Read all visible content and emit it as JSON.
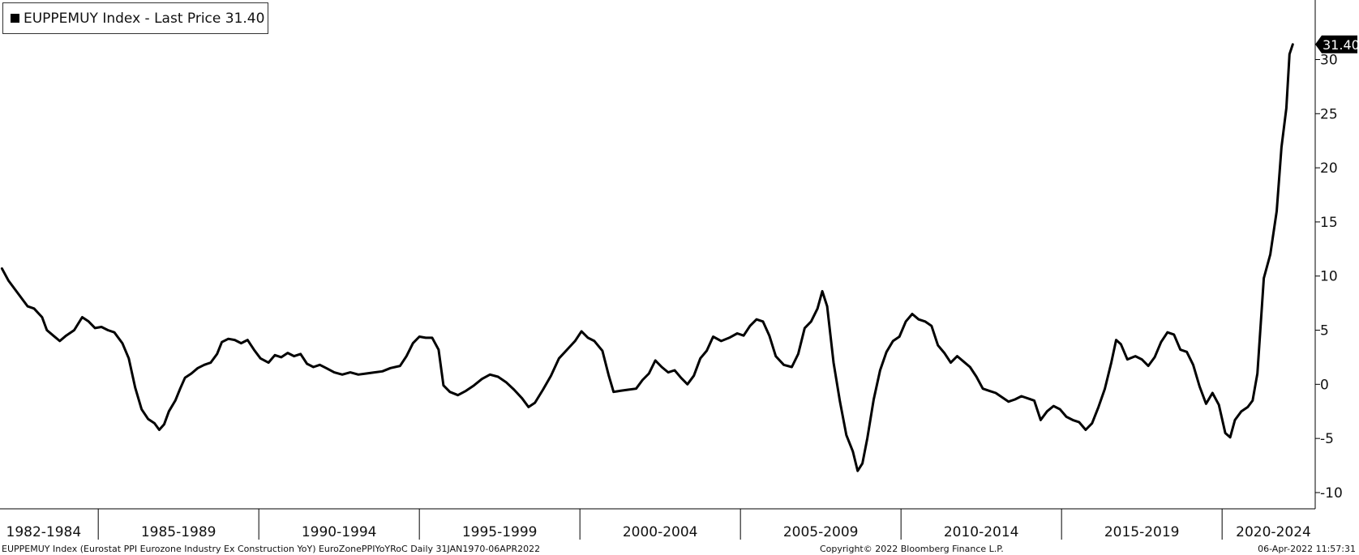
{
  "legend": {
    "label": "EUPPEMUY Index - Last Price 31.40",
    "swatch_color": "#000000"
  },
  "chart_data": {
    "type": "line",
    "series": [
      {
        "name": "EUPPEMUY Index - Last Price",
        "color": "#000000",
        "points": [
          [
            1982.0,
            10.7
          ],
          [
            1982.2,
            9.6
          ],
          [
            1982.5,
            8.4
          ],
          [
            1982.8,
            7.2
          ],
          [
            1983.0,
            7.0
          ],
          [
            1983.25,
            6.2
          ],
          [
            1983.4,
            5.0
          ],
          [
            1983.6,
            4.5
          ],
          [
            1983.8,
            4.0
          ],
          [
            1984.0,
            4.5
          ],
          [
            1984.25,
            5.0
          ],
          [
            1984.5,
            6.2
          ],
          [
            1984.7,
            5.8
          ],
          [
            1984.9,
            5.2
          ],
          [
            1985.1,
            5.3
          ],
          [
            1985.3,
            5.0
          ],
          [
            1985.5,
            4.8
          ],
          [
            1985.75,
            3.8
          ],
          [
            1985.95,
            2.4
          ],
          [
            1986.15,
            -0.3
          ],
          [
            1986.35,
            -2.3
          ],
          [
            1986.55,
            -3.2
          ],
          [
            1986.75,
            -3.6
          ],
          [
            1986.9,
            -4.2
          ],
          [
            1987.05,
            -3.7
          ],
          [
            1987.2,
            -2.5
          ],
          [
            1987.4,
            -1.5
          ],
          [
            1987.55,
            -0.4
          ],
          [
            1987.7,
            0.6
          ],
          [
            1987.9,
            1.0
          ],
          [
            1988.1,
            1.5
          ],
          [
            1988.3,
            1.8
          ],
          [
            1988.5,
            2.0
          ],
          [
            1988.7,
            2.8
          ],
          [
            1988.85,
            3.9
          ],
          [
            1989.05,
            4.2
          ],
          [
            1989.25,
            4.1
          ],
          [
            1989.45,
            3.8
          ],
          [
            1989.65,
            4.1
          ],
          [
            1989.85,
            3.2
          ],
          [
            1990.05,
            2.4
          ],
          [
            1990.3,
            2.0
          ],
          [
            1990.5,
            2.7
          ],
          [
            1990.7,
            2.5
          ],
          [
            1990.9,
            2.9
          ],
          [
            1991.1,
            2.6
          ],
          [
            1991.3,
            2.8
          ],
          [
            1991.5,
            1.9
          ],
          [
            1991.7,
            1.6
          ],
          [
            1991.9,
            1.8
          ],
          [
            1992.1,
            1.5
          ],
          [
            1992.35,
            1.1
          ],
          [
            1992.6,
            0.9
          ],
          [
            1992.85,
            1.1
          ],
          [
            1993.1,
            0.9
          ],
          [
            1993.35,
            1.0
          ],
          [
            1993.6,
            1.1
          ],
          [
            1993.85,
            1.2
          ],
          [
            1994.1,
            1.5
          ],
          [
            1994.4,
            1.7
          ],
          [
            1994.6,
            2.6
          ],
          [
            1994.8,
            3.8
          ],
          [
            1995.0,
            4.4
          ],
          [
            1995.2,
            4.3
          ],
          [
            1995.4,
            4.3
          ],
          [
            1995.6,
            3.2
          ],
          [
            1995.75,
            -0.1
          ],
          [
            1995.95,
            -0.7
          ],
          [
            1996.2,
            -1.0
          ],
          [
            1996.45,
            -0.6
          ],
          [
            1996.7,
            -0.1
          ],
          [
            1996.95,
            0.5
          ],
          [
            1997.2,
            0.9
          ],
          [
            1997.45,
            0.7
          ],
          [
            1997.7,
            0.2
          ],
          [
            1997.95,
            -0.5
          ],
          [
            1998.2,
            -1.3
          ],
          [
            1998.4,
            -2.1
          ],
          [
            1998.6,
            -1.7
          ],
          [
            1998.85,
            -0.5
          ],
          [
            1999.1,
            0.8
          ],
          [
            1999.35,
            2.4
          ],
          [
            1999.6,
            3.2
          ],
          [
            1999.85,
            4.0
          ],
          [
            2000.05,
            4.9
          ],
          [
            2000.25,
            4.3
          ],
          [
            2000.45,
            4.0
          ],
          [
            2000.7,
            3.1
          ],
          [
            2000.9,
            0.8
          ],
          [
            2001.05,
            -0.7
          ],
          [
            2001.25,
            -0.6
          ],
          [
            2001.5,
            -0.5
          ],
          [
            2001.75,
            -0.4
          ],
          [
            2001.95,
            0.4
          ],
          [
            2002.15,
            1.0
          ],
          [
            2002.35,
            2.2
          ],
          [
            2002.55,
            1.6
          ],
          [
            2002.75,
            1.1
          ],
          [
            2002.95,
            1.3
          ],
          [
            2003.15,
            0.6
          ],
          [
            2003.35,
            0.0
          ],
          [
            2003.55,
            0.8
          ],
          [
            2003.75,
            2.4
          ],
          [
            2003.95,
            3.1
          ],
          [
            2004.15,
            4.4
          ],
          [
            2004.4,
            4.0
          ],
          [
            2004.65,
            4.3
          ],
          [
            2004.9,
            4.7
          ],
          [
            2005.1,
            4.5
          ],
          [
            2005.3,
            5.4
          ],
          [
            2005.5,
            6.0
          ],
          [
            2005.7,
            5.8
          ],
          [
            2005.9,
            4.5
          ],
          [
            2006.1,
            2.6
          ],
          [
            2006.35,
            1.8
          ],
          [
            2006.6,
            1.6
          ],
          [
            2006.8,
            2.8
          ],
          [
            2007.0,
            5.2
          ],
          [
            2007.2,
            5.8
          ],
          [
            2007.4,
            7.0
          ],
          [
            2007.55,
            8.6
          ],
          [
            2007.7,
            7.2
          ],
          [
            2007.9,
            2.0
          ],
          [
            2008.1,
            -1.6
          ],
          [
            2008.3,
            -4.7
          ],
          [
            2008.5,
            -6.2
          ],
          [
            2008.65,
            -8.0
          ],
          [
            2008.8,
            -7.3
          ],
          [
            2008.95,
            -5.0
          ],
          [
            2009.15,
            -1.4
          ],
          [
            2009.35,
            1.3
          ],
          [
            2009.55,
            3.0
          ],
          [
            2009.75,
            4.0
          ],
          [
            2009.95,
            4.4
          ],
          [
            2010.15,
            5.8
          ],
          [
            2010.35,
            6.5
          ],
          [
            2010.55,
            6.0
          ],
          [
            2010.75,
            5.8
          ],
          [
            2010.95,
            5.4
          ],
          [
            2011.15,
            3.6
          ],
          [
            2011.35,
            2.9
          ],
          [
            2011.55,
            2.0
          ],
          [
            2011.75,
            2.6
          ],
          [
            2011.95,
            2.1
          ],
          [
            2012.15,
            1.6
          ],
          [
            2012.35,
            0.7
          ],
          [
            2012.55,
            -0.4
          ],
          [
            2012.75,
            -0.6
          ],
          [
            2012.95,
            -0.8
          ],
          [
            2013.15,
            -1.2
          ],
          [
            2013.35,
            -1.6
          ],
          [
            2013.55,
            -1.4
          ],
          [
            2013.75,
            -1.1
          ],
          [
            2013.95,
            -1.3
          ],
          [
            2014.15,
            -1.5
          ],
          [
            2014.35,
            -3.3
          ],
          [
            2014.55,
            -2.5
          ],
          [
            2014.75,
            -2.0
          ],
          [
            2014.95,
            -2.3
          ],
          [
            2015.15,
            -3.0
          ],
          [
            2015.35,
            -3.3
          ],
          [
            2015.55,
            -3.5
          ],
          [
            2015.75,
            -4.2
          ],
          [
            2015.95,
            -3.6
          ],
          [
            2016.15,
            -2.1
          ],
          [
            2016.35,
            -0.4
          ],
          [
            2016.55,
            2.0
          ],
          [
            2016.7,
            4.1
          ],
          [
            2016.85,
            3.7
          ],
          [
            2017.05,
            2.3
          ],
          [
            2017.3,
            2.6
          ],
          [
            2017.5,
            2.3
          ],
          [
            2017.7,
            1.7
          ],
          [
            2017.9,
            2.5
          ],
          [
            2018.1,
            3.9
          ],
          [
            2018.3,
            4.8
          ],
          [
            2018.5,
            4.6
          ],
          [
            2018.7,
            3.2
          ],
          [
            2018.9,
            3.0
          ],
          [
            2019.1,
            1.8
          ],
          [
            2019.3,
            -0.2
          ],
          [
            2019.5,
            -1.8
          ],
          [
            2019.7,
            -0.8
          ],
          [
            2019.9,
            -1.9
          ],
          [
            2020.1,
            -4.5
          ],
          [
            2020.25,
            -4.9
          ],
          [
            2020.4,
            -3.3
          ],
          [
            2020.6,
            -2.5
          ],
          [
            2020.8,
            -2.1
          ],
          [
            2020.95,
            -1.5
          ],
          [
            2021.1,
            1.0
          ],
          [
            2021.3,
            9.8
          ],
          [
            2021.5,
            12.0
          ],
          [
            2021.7,
            16.0
          ],
          [
            2021.85,
            21.9
          ],
          [
            2022.0,
            25.5
          ],
          [
            2022.1,
            30.5
          ],
          [
            2022.2,
            31.4
          ]
        ]
      }
    ],
    "ylim": [
      -11.5,
      35.5
    ],
    "yticks": [
      -10,
      -5,
      0,
      5,
      10,
      15,
      20,
      25,
      30
    ],
    "xlim": [
      1981.94,
      2022.9
    ],
    "x_period_ticks": [
      1985,
      1990,
      1995,
      2000,
      2005,
      2010,
      2015,
      2020
    ],
    "x_period_labels": [
      {
        "label": "1982-1984",
        "center": 1983.3
      },
      {
        "label": "1985-1989",
        "center": 1987.5
      },
      {
        "label": "1990-1994",
        "center": 1992.5
      },
      {
        "label": "1995-1999",
        "center": 1997.5
      },
      {
        "label": "2000-2004",
        "center": 2002.5
      },
      {
        "label": "2005-2009",
        "center": 2007.5
      },
      {
        "label": "2010-2014",
        "center": 2012.5
      },
      {
        "label": "2015-2019",
        "center": 2017.5
      },
      {
        "label": "2020-2024",
        "center": 2021.6
      }
    ],
    "last_value": 31.4,
    "last_value_label": "31.40",
    "grid": false,
    "y_axis_side": "right",
    "legend_position": "top-left"
  },
  "footer": {
    "description": "EUPPEMUY Index (Eurostat PPI Eurozone Industry Ex Construction YoY) EuroZonePPIYoYRoC  Daily 31JAN1970-06APR2022",
    "copyright": "Copyright© 2022 Bloomberg Finance L.P.",
    "timestamp": "06-Apr-2022 11:57:31"
  }
}
